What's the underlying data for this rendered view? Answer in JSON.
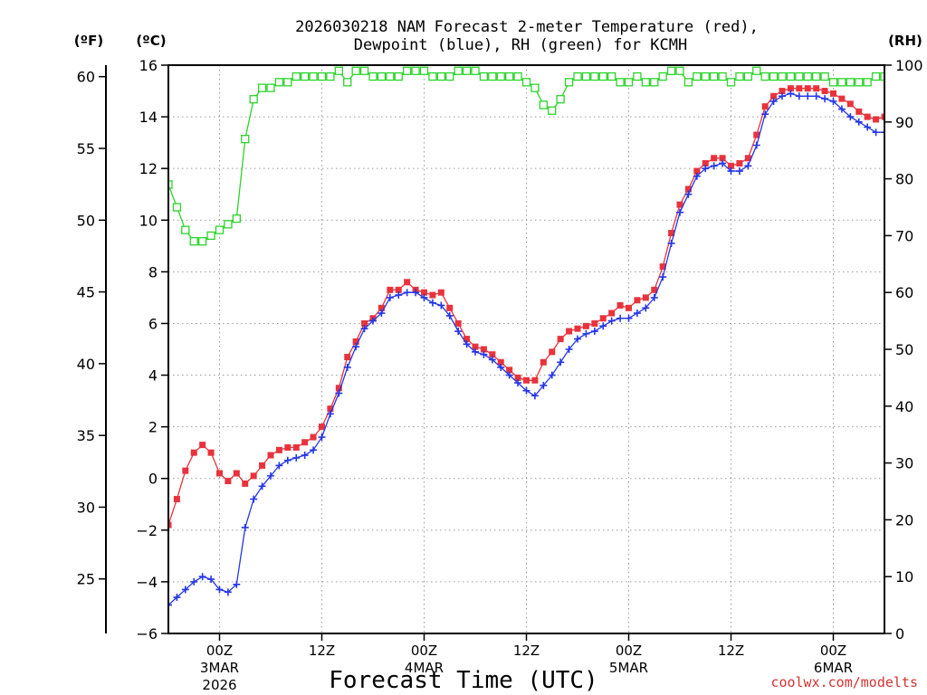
{
  "chart_data": {
    "type": "line",
    "title": "2026030218 NAM Forecast 2-meter Temperature (red),",
    "subtitle": "Dewpoint (blue), RH (green) for KCMH",
    "xlabel": "Forecast Time (UTC)",
    "credit": "coolwx.com/modelts",
    "units": {
      "fahrenheit": "(ºF)",
      "celsius": "(ºC)",
      "rh": "(RH)"
    },
    "x_hours_range": [
      0,
      84
    ],
    "c_range": [
      -6,
      16
    ],
    "f_range": [
      21.2,
      60.8
    ],
    "rh_range": [
      0,
      100
    ],
    "c_ticks": [
      "16",
      "14",
      "12",
      "10",
      "8",
      "6",
      "4",
      "2",
      "0",
      "−2",
      "−4",
      "−6"
    ],
    "f_ticks": [
      "60",
      "55",
      "50",
      "45",
      "40",
      "35",
      "30",
      "25"
    ],
    "rh_ticks": [
      "100",
      "90",
      "80",
      "70",
      "60",
      "50",
      "40",
      "30",
      "20",
      "10",
      "0"
    ],
    "x_ticks": [
      {
        "hour": 6,
        "label": "00Z",
        "date": "3MAR",
        "year": "2026"
      },
      {
        "hour": 18,
        "label": "12Z",
        "date": "",
        "year": ""
      },
      {
        "hour": 30,
        "label": "00Z",
        "date": "4MAR",
        "year": ""
      },
      {
        "hour": 42,
        "label": "12Z",
        "date": "",
        "year": ""
      },
      {
        "hour": 54,
        "label": "00Z",
        "date": "5MAR",
        "year": ""
      },
      {
        "hour": 66,
        "label": "12Z",
        "date": "",
        "year": ""
      },
      {
        "hour": 78,
        "label": "00Z",
        "date": "6MAR",
        "year": ""
      }
    ],
    "x_hours": [
      0,
      1,
      2,
      3,
      4,
      5,
      6,
      7,
      8,
      9,
      10,
      11,
      12,
      13,
      14,
      15,
      16,
      17,
      18,
      19,
      20,
      21,
      22,
      23,
      24,
      25,
      26,
      27,
      28,
      29,
      30,
      31,
      32,
      33,
      34,
      35,
      36,
      37,
      38,
      39,
      40,
      41,
      42,
      43,
      44,
      45,
      46,
      47,
      48,
      49,
      50,
      51,
      52,
      53,
      54,
      55,
      56,
      57,
      58,
      59,
      60,
      61,
      62,
      63,
      64,
      65,
      66,
      67,
      68,
      69,
      70,
      71,
      72,
      73,
      74,
      75,
      76,
      77,
      78,
      79,
      80,
      81,
      82,
      83,
      84
    ],
    "series": [
      {
        "name": "Temperature",
        "color": "#e8333c",
        "unit": "C",
        "marker": "square-filled",
        "values": [
          -1.8,
          -0.8,
          0.3,
          1.0,
          1.3,
          1.0,
          0.2,
          -0.1,
          0.2,
          -0.2,
          0.1,
          0.5,
          0.9,
          1.1,
          1.2,
          1.2,
          1.4,
          1.6,
          2.0,
          2.7,
          3.5,
          4.7,
          5.3,
          6.0,
          6.2,
          6.6,
          7.3,
          7.3,
          7.6,
          7.3,
          7.2,
          7.1,
          7.2,
          6.6,
          6.0,
          5.4,
          5.1,
          5.0,
          4.8,
          4.5,
          4.2,
          3.9,
          3.8,
          3.8,
          4.5,
          4.9,
          5.4,
          5.7,
          5.8,
          5.9,
          6.0,
          6.2,
          6.4,
          6.7,
          6.6,
          6.9,
          7.0,
          7.3,
          8.2,
          9.5,
          10.6,
          11.2,
          11.9,
          12.2,
          12.4,
          12.4,
          12.1,
          12.2,
          12.4,
          13.3,
          14.4,
          14.8,
          15.0,
          15.1,
          15.1,
          15.1,
          15.1,
          15.0,
          14.9,
          14.7,
          14.5,
          14.2,
          14.0,
          13.9,
          14.0
        ]
      },
      {
        "name": "Dewpoint",
        "color": "#2436e6",
        "unit": "C",
        "marker": "plus",
        "values": [
          -4.9,
          -4.6,
          -4.3,
          -4.0,
          -3.8,
          -3.9,
          -4.3,
          -4.4,
          -4.1,
          -1.9,
          -0.8,
          -0.3,
          0.1,
          0.5,
          0.7,
          0.8,
          0.9,
          1.1,
          1.6,
          2.5,
          3.3,
          4.3,
          5.1,
          5.8,
          6.1,
          6.4,
          7.0,
          7.1,
          7.2,
          7.2,
          7.0,
          6.8,
          6.7,
          6.3,
          5.7,
          5.2,
          4.9,
          4.8,
          4.6,
          4.3,
          4.0,
          3.7,
          3.4,
          3.2,
          3.6,
          4.0,
          4.5,
          5.0,
          5.4,
          5.6,
          5.7,
          5.9,
          6.1,
          6.2,
          6.2,
          6.4,
          6.6,
          7.0,
          7.8,
          9.1,
          10.3,
          11.0,
          11.7,
          12.0,
          12.1,
          12.2,
          11.9,
          11.9,
          12.1,
          12.9,
          14.1,
          14.6,
          14.8,
          14.9,
          14.8,
          14.8,
          14.8,
          14.7,
          14.6,
          14.3,
          14.0,
          13.8,
          13.6,
          13.4,
          13.4
        ]
      },
      {
        "name": "RH",
        "color": "#2bd42b",
        "unit": "%",
        "marker": "square-open",
        "values": [
          79,
          75,
          71,
          69,
          69,
          70,
          71,
          72,
          73,
          87,
          94,
          96,
          96,
          97,
          97,
          98,
          98,
          98,
          98,
          98,
          99,
          97,
          99,
          99,
          98,
          98,
          98,
          98,
          99,
          99,
          99,
          98,
          98,
          98,
          99,
          99,
          99,
          98,
          98,
          98,
          98,
          98,
          97,
          96,
          93,
          92,
          94,
          97,
          98,
          98,
          98,
          98,
          98,
          97,
          97,
          98,
          97,
          97,
          98,
          99,
          99,
          97,
          98,
          98,
          98,
          98,
          97,
          98,
          98,
          99,
          98,
          98,
          98,
          98,
          98,
          98,
          98,
          98,
          97,
          97,
          97,
          97,
          97,
          98,
          98
        ]
      }
    ]
  }
}
